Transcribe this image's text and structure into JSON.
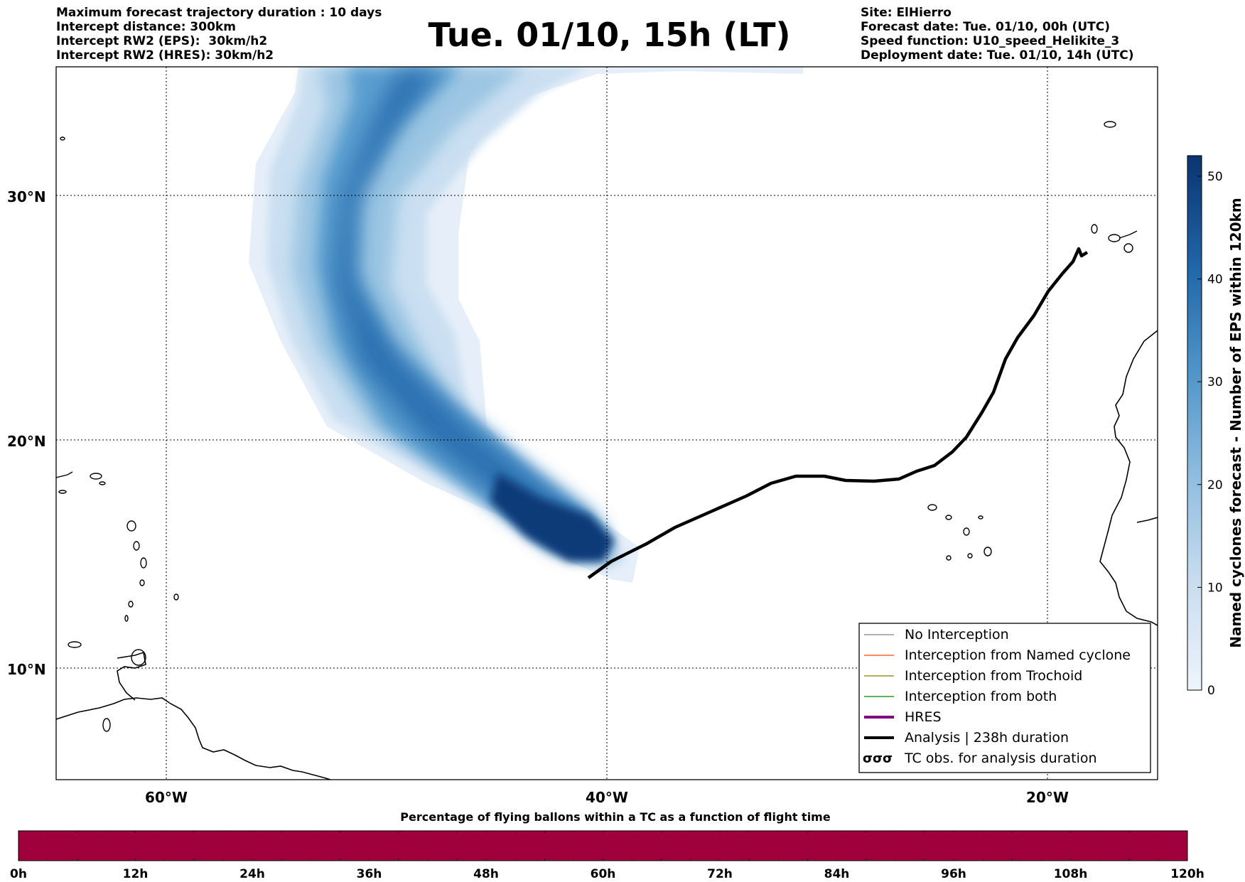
{
  "header": {
    "left_lines": [
      "Maximum forecast trajectory duration : 10 days",
      "Intercept distance: 300km",
      "Intercept RW2 (EPS):  30km/h2",
      "Intercept RW2 (HRES): 30km/h2"
    ],
    "title": "Tue. 01/10, 15h (LT)",
    "right_lines": [
      "Site: ElHierro",
      "Forecast date: Tue. 01/10, 00h (UTC)",
      "Speed function: U10_speed_Helikite_3",
      "Deployment date: Tue. 01/10, 14h (UTC)"
    ]
  },
  "map": {
    "lat_labels": [
      "30°N",
      "20°N",
      "10°N"
    ],
    "lon_labels": [
      "60°W",
      "40°W",
      "20°W"
    ],
    "lat_values": [
      30,
      20,
      10
    ],
    "lon_values": [
      -60,
      -40,
      -20
    ],
    "extent": {
      "lon_min": -65,
      "lon_max": -15,
      "lat_min": 5.4,
      "lat_max": 34.6
    },
    "colors": {
      "density_low": "#deebf7",
      "density_high": "#08306b",
      "track": "#000000",
      "land_outline": "#000000"
    }
  },
  "colorbar": {
    "label": "Named cyclones forecast - Number of EPS within 120km",
    "ticks": [
      "0",
      "10",
      "20",
      "30",
      "40",
      "50"
    ],
    "min": 0,
    "max": 52
  },
  "legend": {
    "items": [
      {
        "label": "No Interception",
        "color": "#808080",
        "style": "thin"
      },
      {
        "label": "Interception from Named cyclone",
        "color": "#ff4500",
        "style": "thin"
      },
      {
        "label": "Interception from Trochoid",
        "color": "#808000",
        "style": "thin"
      },
      {
        "label": "Interception from both",
        "color": "#008000",
        "style": "thin"
      },
      {
        "label": "HRES",
        "color": "#800080",
        "style": "thick"
      },
      {
        "label": "Analysis | 238h duration",
        "color": "#000000",
        "style": "thick"
      },
      {
        "label": "TC obs. for analysis duration",
        "color": "#000000",
        "style": "symbol",
        "symbol_text": "σσσ"
      }
    ]
  },
  "bottom_bar": {
    "title": "Percentage of flying ballons within a TC as a function of flight time",
    "ticks": [
      "0h",
      "12h",
      "24h",
      "36h",
      "48h",
      "60h",
      "72h",
      "84h",
      "96h",
      "108h",
      "120h"
    ],
    "color": "#a0003c"
  }
}
